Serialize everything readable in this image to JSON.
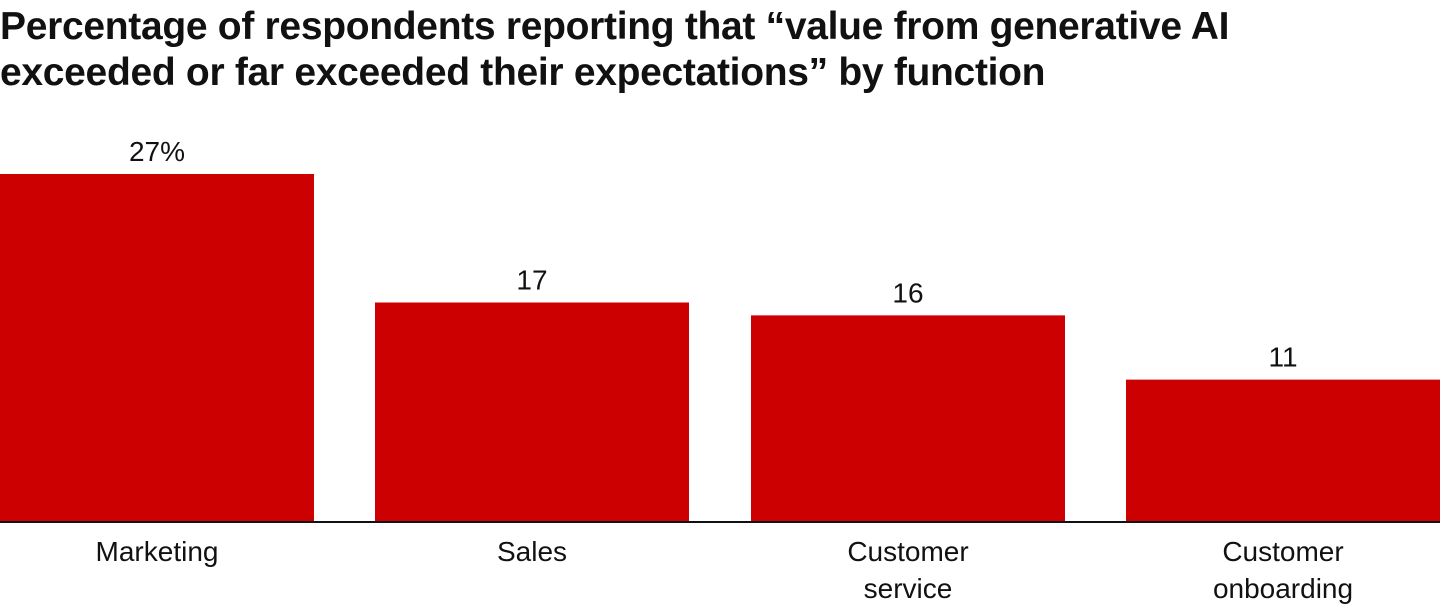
{
  "chart_data": {
    "type": "bar",
    "title_lines": [
      "Percentage of respondents reporting that “value from generative AI",
      "exceeded or far exceeded their expectations” by function"
    ],
    "categories": [
      [
        "Marketing"
      ],
      [
        "Sales"
      ],
      [
        "Customer",
        "service"
      ],
      [
        "Customer",
        "onboarding"
      ]
    ],
    "values": [
      27,
      17,
      16,
      11
    ],
    "value_labels": [
      "27%",
      "17",
      "16",
      "11"
    ],
    "xlabel": "",
    "ylabel": "",
    "ylim": [
      0,
      27
    ],
    "grid": false,
    "bar_color": "#cc0000",
    "axis_color": "#111111"
  }
}
